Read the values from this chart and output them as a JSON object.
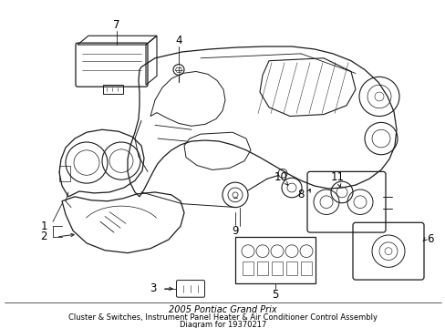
{
  "title": "2005 Pontiac Grand Prix",
  "subtitle": "Cluster & Switches, Instrument Panel Heater & Air Conditioner Control Assembly",
  "part_number": "19370217",
  "bg_color": "#ffffff",
  "line_color": "#1a1a1a",
  "text_color": "#000000",
  "label_fontsize": 8.5,
  "title_fontsize": 6.5,
  "fig_width": 4.89,
  "fig_height": 3.6,
  "dpi": 100
}
